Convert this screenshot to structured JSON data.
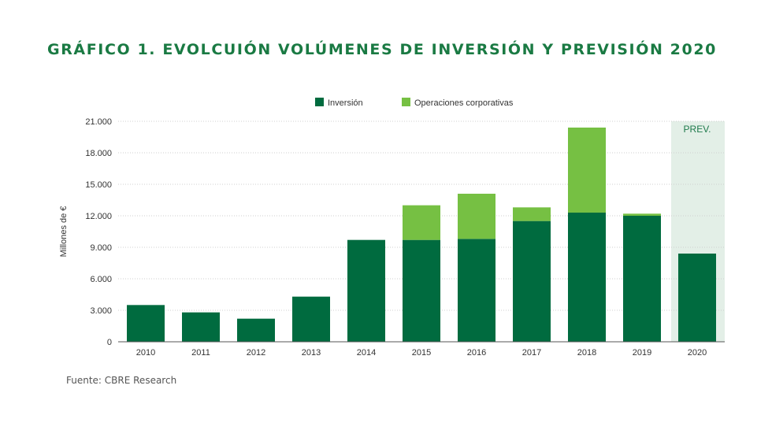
{
  "title": "GRÁFICO 1. EVOLCUIÓN VOLÚMENES DE INVERSIÓN Y PREVISIÓN 2020",
  "source": "Fuente: CBRE Research",
  "chart_data": {
    "type": "bar",
    "stacked": true,
    "categories": [
      "2010",
      "2011",
      "2012",
      "2013",
      "2014",
      "2015",
      "2016",
      "2017",
      "2018",
      "2019",
      "2020"
    ],
    "series": [
      {
        "name": "Inversión",
        "color": "#006b3f",
        "values": [
          3500,
          2800,
          2200,
          4300,
          9700,
          9700,
          9800,
          11500,
          12300,
          12000,
          8400
        ]
      },
      {
        "name": "Operaciones corporativas",
        "color": "#76c043",
        "values": [
          0,
          0,
          0,
          0,
          0,
          3300,
          4300,
          1300,
          8100,
          200,
          0
        ]
      }
    ],
    "ylabel": "Millones de €",
    "ylim": [
      0,
      21000
    ],
    "yticks": [
      "0",
      "3.000",
      "6.000",
      "9.000",
      "12.000",
      "15.000",
      "18.000",
      "21.000"
    ],
    "grid": true,
    "legend_position": "top-center",
    "forecast_label": "PREV.",
    "forecast_category": "2020",
    "forecast_shade_color": "#e3efe7"
  }
}
